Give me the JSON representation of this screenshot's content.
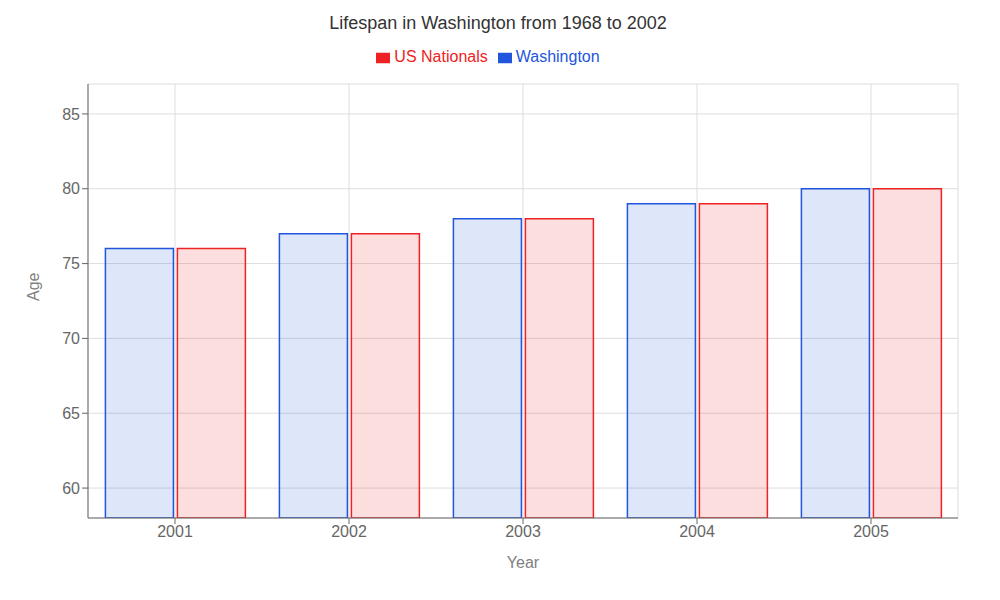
{
  "chart_data": {
    "type": "bar",
    "title": "Lifespan in Washington from 1968 to 2002",
    "x_label": "Year",
    "y_label": "Age",
    "categories": [
      "2001",
      "2002",
      "2003",
      "2004",
      "2005"
    ],
    "series": [
      {
        "name": "Washington",
        "color": "#2255dd",
        "values": [
          76,
          77,
          78,
          79,
          80
        ]
      },
      {
        "name": "US Nationals",
        "color": "#ee2222",
        "values": [
          76,
          77,
          78,
          79,
          80
        ]
      }
    ],
    "ylim": [
      58,
      87
    ],
    "yticks": [
      60,
      65,
      70,
      75,
      80,
      85
    ],
    "grid": true,
    "legend": "top"
  }
}
